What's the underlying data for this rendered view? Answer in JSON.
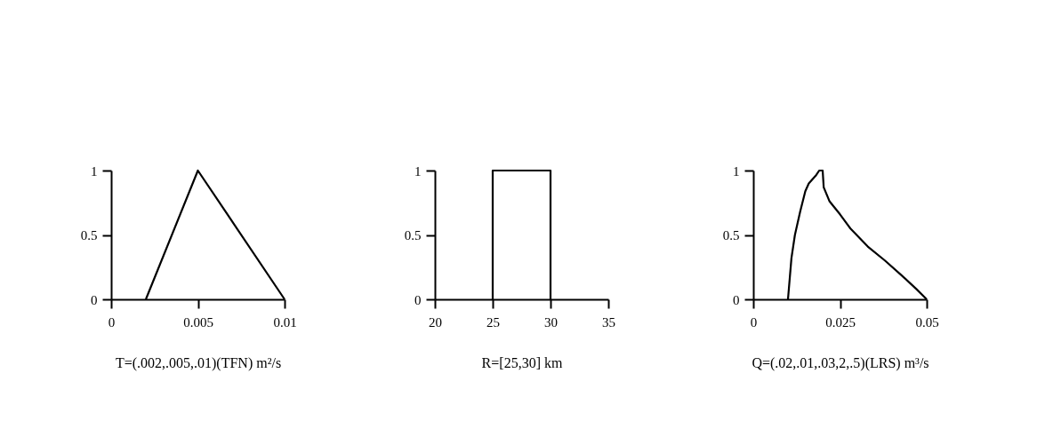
{
  "chart_data": [
    {
      "type": "line",
      "xlabel": "T=(.002,.005,.01)(TFN) m²/s",
      "x": [
        0.002,
        0.005,
        0.01
      ],
      "series": [
        {
          "color": "#000000",
          "values": [
            0,
            1,
            0
          ]
        }
      ],
      "xlim": [
        0,
        0.01
      ],
      "xticks": [
        {
          "value": 0,
          "label": "0"
        },
        {
          "value": 0.005,
          "label": "0.005"
        },
        {
          "value": 0.01,
          "label": "0.01"
        }
      ],
      "ylim": [
        0,
        1
      ],
      "yticks": [
        0,
        0.5,
        1
      ],
      "grid": false,
      "marker": "none",
      "line_style": "solid"
    },
    {
      "type": "line",
      "xlabel": "R=[25,30] km",
      "x": [
        25,
        25,
        30,
        30
      ],
      "series": [
        {
          "color": "#000000",
          "values": [
            0,
            1,
            1,
            0
          ]
        }
      ],
      "xlim": [
        20,
        35
      ],
      "xticks": [
        20,
        25,
        30,
        35
      ],
      "ylim": [
        0,
        1
      ],
      "yticks": [
        0,
        0.5,
        1
      ],
      "grid": false,
      "marker": "none",
      "line_style": "solid"
    },
    {
      "type": "line",
      "xlabel": "Q=(.02,.01,.03,2,.5)(LRS) m³/s",
      "x": [
        0.01,
        0.011,
        0.012,
        0.0135,
        0.015,
        0.016,
        0.018,
        0.019,
        0.02,
        0.0203,
        0.022,
        0.025,
        0.028,
        0.033,
        0.038,
        0.043,
        0.047,
        0.05
      ],
      "series": [
        {
          "color": "#000000",
          "values": [
            0,
            0.32,
            0.5,
            0.68,
            0.84,
            0.9,
            0.96,
            1,
            1,
            0.87,
            0.76,
            0.66,
            0.55,
            0.41,
            0.3,
            0.18,
            0.08,
            0
          ]
        }
      ],
      "xlim": [
        0,
        0.05
      ],
      "xticks": [
        {
          "value": 0,
          "label": "0"
        },
        {
          "value": 0.025,
          "label": "0.025"
        },
        {
          "value": 0.05,
          "label": "0.05"
        }
      ],
      "ylim": [
        0,
        1
      ],
      "yticks": [
        0,
        0.5,
        1
      ],
      "grid": false,
      "marker": "none",
      "line_style": "solid"
    }
  ]
}
